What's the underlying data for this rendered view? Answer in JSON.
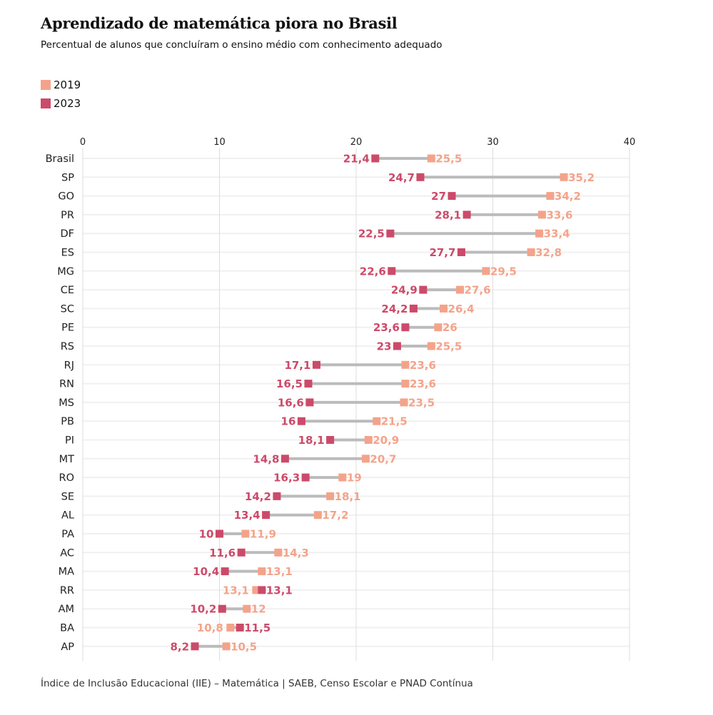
{
  "title": "Aprendizado de matemática piora no Brasil",
  "subtitle": "Percentual de alunos que concluíram o ensino médio com conhecimento adequado",
  "source": "Índice de Inclusão Educacional (IIE) – Matemática | SAEB, Censo Escolar e PNAD Contínua",
  "colors": {
    "2019": "#f4a38a",
    "2023": "#cc4a6a",
    "connector": "#bbbbbb"
  },
  "chart_data": {
    "type": "dumbbell",
    "xlim": [
      0,
      40
    ],
    "xticks": [
      "0",
      "10",
      "20",
      "30",
      "40"
    ],
    "grid": true,
    "legend": {
      "placement": "top-left",
      "entries": [
        "2019",
        "2023"
      ]
    },
    "categories": [
      "Brasil",
      "SP",
      "GO",
      "PR",
      "DF",
      "ES",
      "MG",
      "CE",
      "SC",
      "PE",
      "RS",
      "RJ",
      "RN",
      "MS",
      "PB",
      "PI",
      "MT",
      "RO",
      "SE",
      "AL",
      "PA",
      "AC",
      "MA",
      "RR",
      "AM",
      "BA",
      "AP"
    ],
    "series": [
      {
        "name": "2019",
        "values": [
          25.5,
          35.2,
          34.2,
          33.6,
          33.4,
          32.8,
          29.5,
          27.6,
          26.4,
          26,
          25.5,
          23.6,
          23.6,
          23.5,
          21.5,
          20.9,
          20.7,
          19,
          18.1,
          17.2,
          11.9,
          14.3,
          13.1,
          13.1,
          12,
          10.8,
          10.5
        ],
        "labels": [
          "25,5",
          "35,2",
          "34,2",
          "33,6",
          "33,4",
          "32,8",
          "29,5",
          "27,6",
          "26,4",
          "26",
          "25,5",
          "23,6",
          "23,6",
          "23,5",
          "21,5",
          "20,9",
          "20,7",
          "19",
          "18,1",
          "17,2",
          "11,9",
          "14,3",
          "13,1",
          "13,1",
          "12",
          "10,8",
          "10,5"
        ]
      },
      {
        "name": "2023",
        "values": [
          21.4,
          24.7,
          27,
          28.1,
          22.5,
          27.7,
          22.6,
          24.9,
          24.2,
          23.6,
          23,
          17.1,
          16.5,
          16.6,
          16,
          18.1,
          14.8,
          16.3,
          14.2,
          13.4,
          10,
          11.6,
          10.4,
          13.1,
          10.2,
          11.5,
          8.2
        ],
        "labels": [
          "21,4",
          "24,7",
          "27",
          "28,1",
          "22,5",
          "27,7",
          "22,6",
          "24,9",
          "24,2",
          "23,6",
          "23",
          "17,1",
          "16,5",
          "16,6",
          "16",
          "18,1",
          "14,8",
          "16,3",
          "14,2",
          "13,4",
          "10",
          "11,6",
          "10,4",
          "13,1",
          "10,2",
          "11,5",
          "8,2"
        ]
      }
    ]
  }
}
